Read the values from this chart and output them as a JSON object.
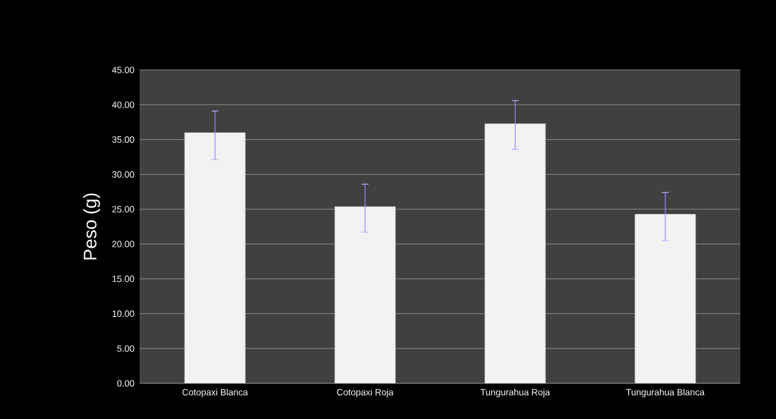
{
  "chart_data": {
    "type": "bar",
    "ylabel": "Peso (g)",
    "categories": [
      "Cotopaxi Blanca",
      "Cotopaxi Roja",
      "Tungurahua Roja",
      "Tungurahua Blanca"
    ],
    "values": [
      36.0,
      25.4,
      37.3,
      24.3
    ],
    "errors": [
      [
        32.1,
        39.1
      ],
      [
        21.7,
        28.6
      ],
      [
        33.6,
        40.6
      ],
      [
        20.5,
        27.4
      ]
    ],
    "color": "#f2f2f2",
    "ylim": [
      0,
      45
    ],
    "yticks": [
      {
        "value": 0,
        "label": "0.00"
      },
      {
        "value": 5,
        "label": "5.00"
      },
      {
        "value": 10,
        "label": "10.00"
      },
      {
        "value": 15,
        "label": "15.00"
      },
      {
        "value": 20,
        "label": "20.00"
      },
      {
        "value": 25,
        "label": "25.00"
      },
      {
        "value": 30,
        "label": "30.00"
      },
      {
        "value": 35,
        "label": "35.00"
      },
      {
        "value": 40,
        "label": "40.00"
      },
      {
        "value": 45,
        "label": "45.00"
      }
    ],
    "grid": "y"
  }
}
